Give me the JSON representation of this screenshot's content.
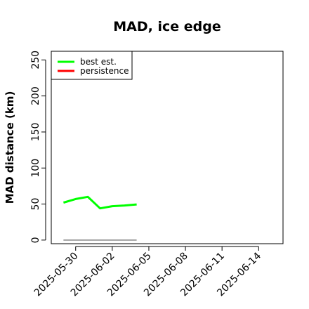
{
  "chart_data": {
    "type": "line",
    "title": "MAD, ice edge",
    "xlabel": "",
    "ylabel": "MAD distance (km)",
    "x_ticks": [
      "2025-05-30",
      "2025-06-02",
      "2025-06-05",
      "2025-06-08",
      "2025-06-11",
      "2025-06-14"
    ],
    "xlim": [
      "2025-05-28",
      "2025-06-16"
    ],
    "y_ticks": [
      0,
      50,
      100,
      150,
      200,
      250
    ],
    "ylim": [
      -5,
      262
    ],
    "grid": false,
    "legend_position": "top-left",
    "series": [
      {
        "name": "best est.",
        "color": "#00ff00",
        "x": [
          "2025-05-29",
          "2025-05-30",
          "2025-05-31",
          "2025-06-01",
          "2025-06-02",
          "2025-06-03",
          "2025-06-04"
        ],
        "y": [
          52,
          57,
          60,
          44,
          47,
          48,
          49.5
        ]
      },
      {
        "name": "persistence",
        "color": "#ff0000",
        "x": [],
        "y": []
      }
    ],
    "reference_line": {
      "color": "#808080",
      "x": [
        "2025-05-29",
        "2025-06-04"
      ],
      "y": [
        0,
        0
      ]
    }
  }
}
